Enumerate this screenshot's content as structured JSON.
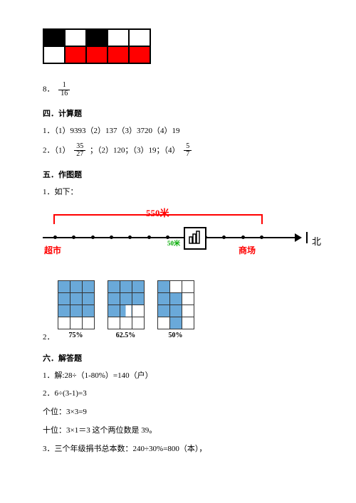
{
  "topGrid": {
    "rows": 2,
    "cols": 5,
    "cells": [
      [
        "blk",
        "wht",
        "blk",
        "wht",
        "wht"
      ],
      [
        "wht",
        "red",
        "red",
        "red",
        "red"
      ]
    ],
    "colors": {
      "blk": "#000000",
      "wht": "#ffffff",
      "red": "#ff0000"
    }
  },
  "q8": {
    "prefix": "8．",
    "frac_num": "1",
    "frac_den": "16"
  },
  "sec4": {
    "heading": "四．计算题",
    "line1": "1．（1）9393（2）137（3）3720（4）19",
    "line2_pre": "2．（1）",
    "line2_frac1_num": "35",
    "line2_frac1_den": "27",
    "line2_mid": "；（2）120；（3）19；（4）",
    "line2_frac2_num": "5",
    "line2_frac2_den": "7"
  },
  "sec5": {
    "heading": "五．作图题",
    "line1": "1．如下："
  },
  "diagram": {
    "topDist": "550米",
    "left": "超市",
    "right": "商场",
    "north": "北",
    "mid": "50米",
    "tickCount": 12,
    "colors": {
      "accent": "#ff0000",
      "axis": "#000000"
    }
  },
  "pct": {
    "q2": "2．",
    "grids": [
      {
        "label": "75%",
        "rows": 4,
        "cols": 3,
        "fill": [
          [
            1,
            1,
            1
          ],
          [
            1,
            1,
            1
          ],
          [
            1,
            1,
            1
          ],
          [
            0,
            0,
            0
          ]
        ]
      },
      {
        "label": "62.5%",
        "rows": 4,
        "cols": 3,
        "fill": [
          [
            1,
            1,
            1
          ],
          [
            1,
            1,
            1
          ],
          [
            1,
            0.5,
            0
          ],
          [
            0,
            0,
            0
          ]
        ]
      },
      {
        "label": "50%",
        "rows": 4,
        "cols": 3,
        "fill": [
          [
            1,
            0,
            0
          ],
          [
            1,
            1,
            0
          ],
          [
            1,
            1,
            0
          ],
          [
            0,
            1,
            0
          ]
        ]
      }
    ],
    "colors": {
      "fill": "#6aa9d9",
      "empty": "#ffffff",
      "border": "#333333"
    }
  },
  "sec6": {
    "heading": "六．解答题",
    "l1": "1．解:28÷（1-80%）=140（户）",
    "l2": "2．6÷(3-1)=3",
    "l3": "个位：3×3=9",
    "l4": "十位：3×1＝3 这个两位数是 39。",
    "l5": "3．三个年级捐书总本数：240÷30%=800（本），"
  }
}
